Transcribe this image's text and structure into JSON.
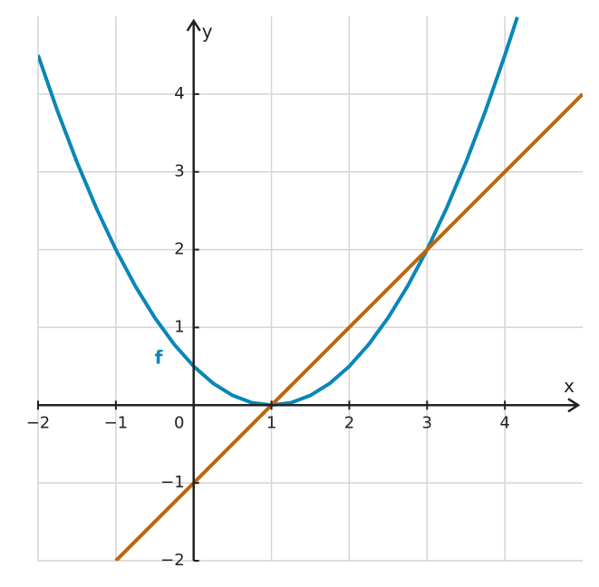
{
  "chart_data": {
    "type": "line",
    "xlabel": "x",
    "ylabel": "y",
    "xlim": [
      -2,
      5
    ],
    "ylim": [
      -2,
      5
    ],
    "xticks": [
      {
        "value": -2,
        "label": "−2"
      },
      {
        "value": -1,
        "label": "−1"
      },
      0,
      1,
      2,
      3,
      4
    ],
    "yticks": [
      {
        "value": -2,
        "label": "−2"
      },
      {
        "value": -1,
        "label": "−1"
      },
      1,
      2,
      3,
      4
    ],
    "grid": true,
    "series": [
      {
        "name": "f",
        "color": "#0a86b8",
        "x": [
          -2,
          -1.75,
          -1.5,
          -1.25,
          -1,
          -0.75,
          -0.5,
          -0.25,
          0,
          0.25,
          0.5,
          0.75,
          1,
          1.25,
          1.5,
          1.75,
          2,
          2.25,
          2.5,
          2.75,
          3,
          3.25,
          3.5,
          3.75,
          4,
          4.16
        ],
        "values": [
          4.5,
          3.78125,
          3.125,
          2.53125,
          2,
          1.53125,
          1.125,
          0.78125,
          0.5,
          0.28125,
          0.125,
          0.03125,
          0,
          0.03125,
          0.125,
          0.28125,
          0.5,
          0.78125,
          1.125,
          1.53125,
          2,
          2.53125,
          3.125,
          3.78125,
          4.5,
          4.99
        ]
      },
      {
        "color": "#c0650a",
        "x": [
          -1,
          5
        ],
        "values": [
          -2,
          4
        ]
      }
    ]
  }
}
